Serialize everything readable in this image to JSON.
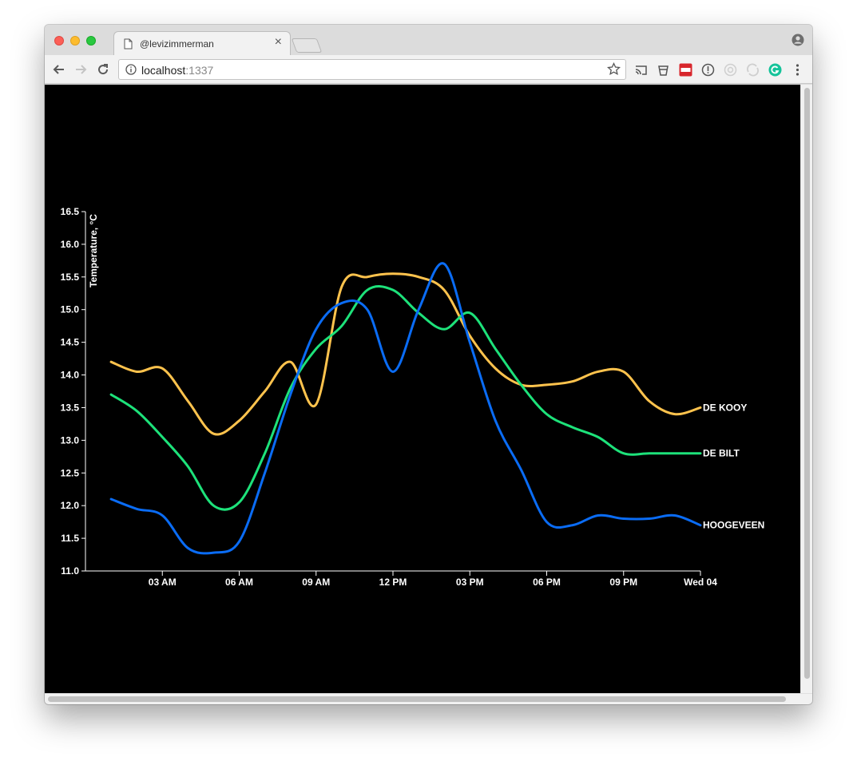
{
  "browser": {
    "tab_title": "@levizimmerman",
    "tab_close": "×",
    "url_host": "localhost",
    "url_port": ":1337"
  },
  "chart_data": {
    "type": "line",
    "ylabel": "Temperature, °C",
    "ylim": [
      11.0,
      16.5
    ],
    "yticks": [
      "11.0",
      "11.5",
      "12.0",
      "12.5",
      "13.0",
      "13.5",
      "14.0",
      "14.5",
      "15.0",
      "15.5",
      "16.0",
      "16.5"
    ],
    "xticks": [
      "03 AM",
      "06 AM",
      "09 AM",
      "12 PM",
      "03 PM",
      "06 PM",
      "09 PM",
      "Wed 04"
    ],
    "x_hours": [
      1,
      2,
      3,
      4,
      5,
      6,
      7,
      8,
      9,
      10,
      11,
      12,
      13,
      14,
      15,
      16,
      17,
      18,
      19,
      20,
      21,
      22,
      23,
      24
    ],
    "series": [
      {
        "name": "DE KOOY",
        "color": "#ffc34d",
        "values": [
          14.2,
          14.05,
          14.1,
          13.6,
          13.1,
          13.3,
          13.75,
          14.2,
          13.55,
          15.35,
          15.5,
          15.55,
          15.5,
          15.3,
          14.6,
          14.1,
          13.85,
          13.85,
          13.9,
          14.05,
          14.05,
          13.6,
          13.4,
          13.5
        ]
      },
      {
        "name": "DE BILT",
        "color": "#1de27a",
        "values": [
          13.7,
          13.45,
          13.05,
          12.6,
          12.0,
          12.05,
          12.8,
          13.8,
          14.4,
          14.75,
          15.3,
          15.3,
          14.95,
          14.7,
          14.95,
          14.4,
          13.85,
          13.4,
          13.2,
          13.05,
          12.8,
          12.8,
          12.8,
          12.8
        ]
      },
      {
        "name": "HOOGEVEEN",
        "color": "#0a6cf5",
        "values": [
          12.1,
          11.95,
          11.85,
          11.35,
          11.28,
          11.45,
          12.5,
          13.7,
          14.7,
          15.1,
          15.0,
          14.05,
          15.0,
          15.7,
          14.5,
          13.3,
          12.55,
          11.75,
          11.7,
          11.85,
          11.8,
          11.8,
          11.85,
          11.7
        ]
      }
    ]
  }
}
